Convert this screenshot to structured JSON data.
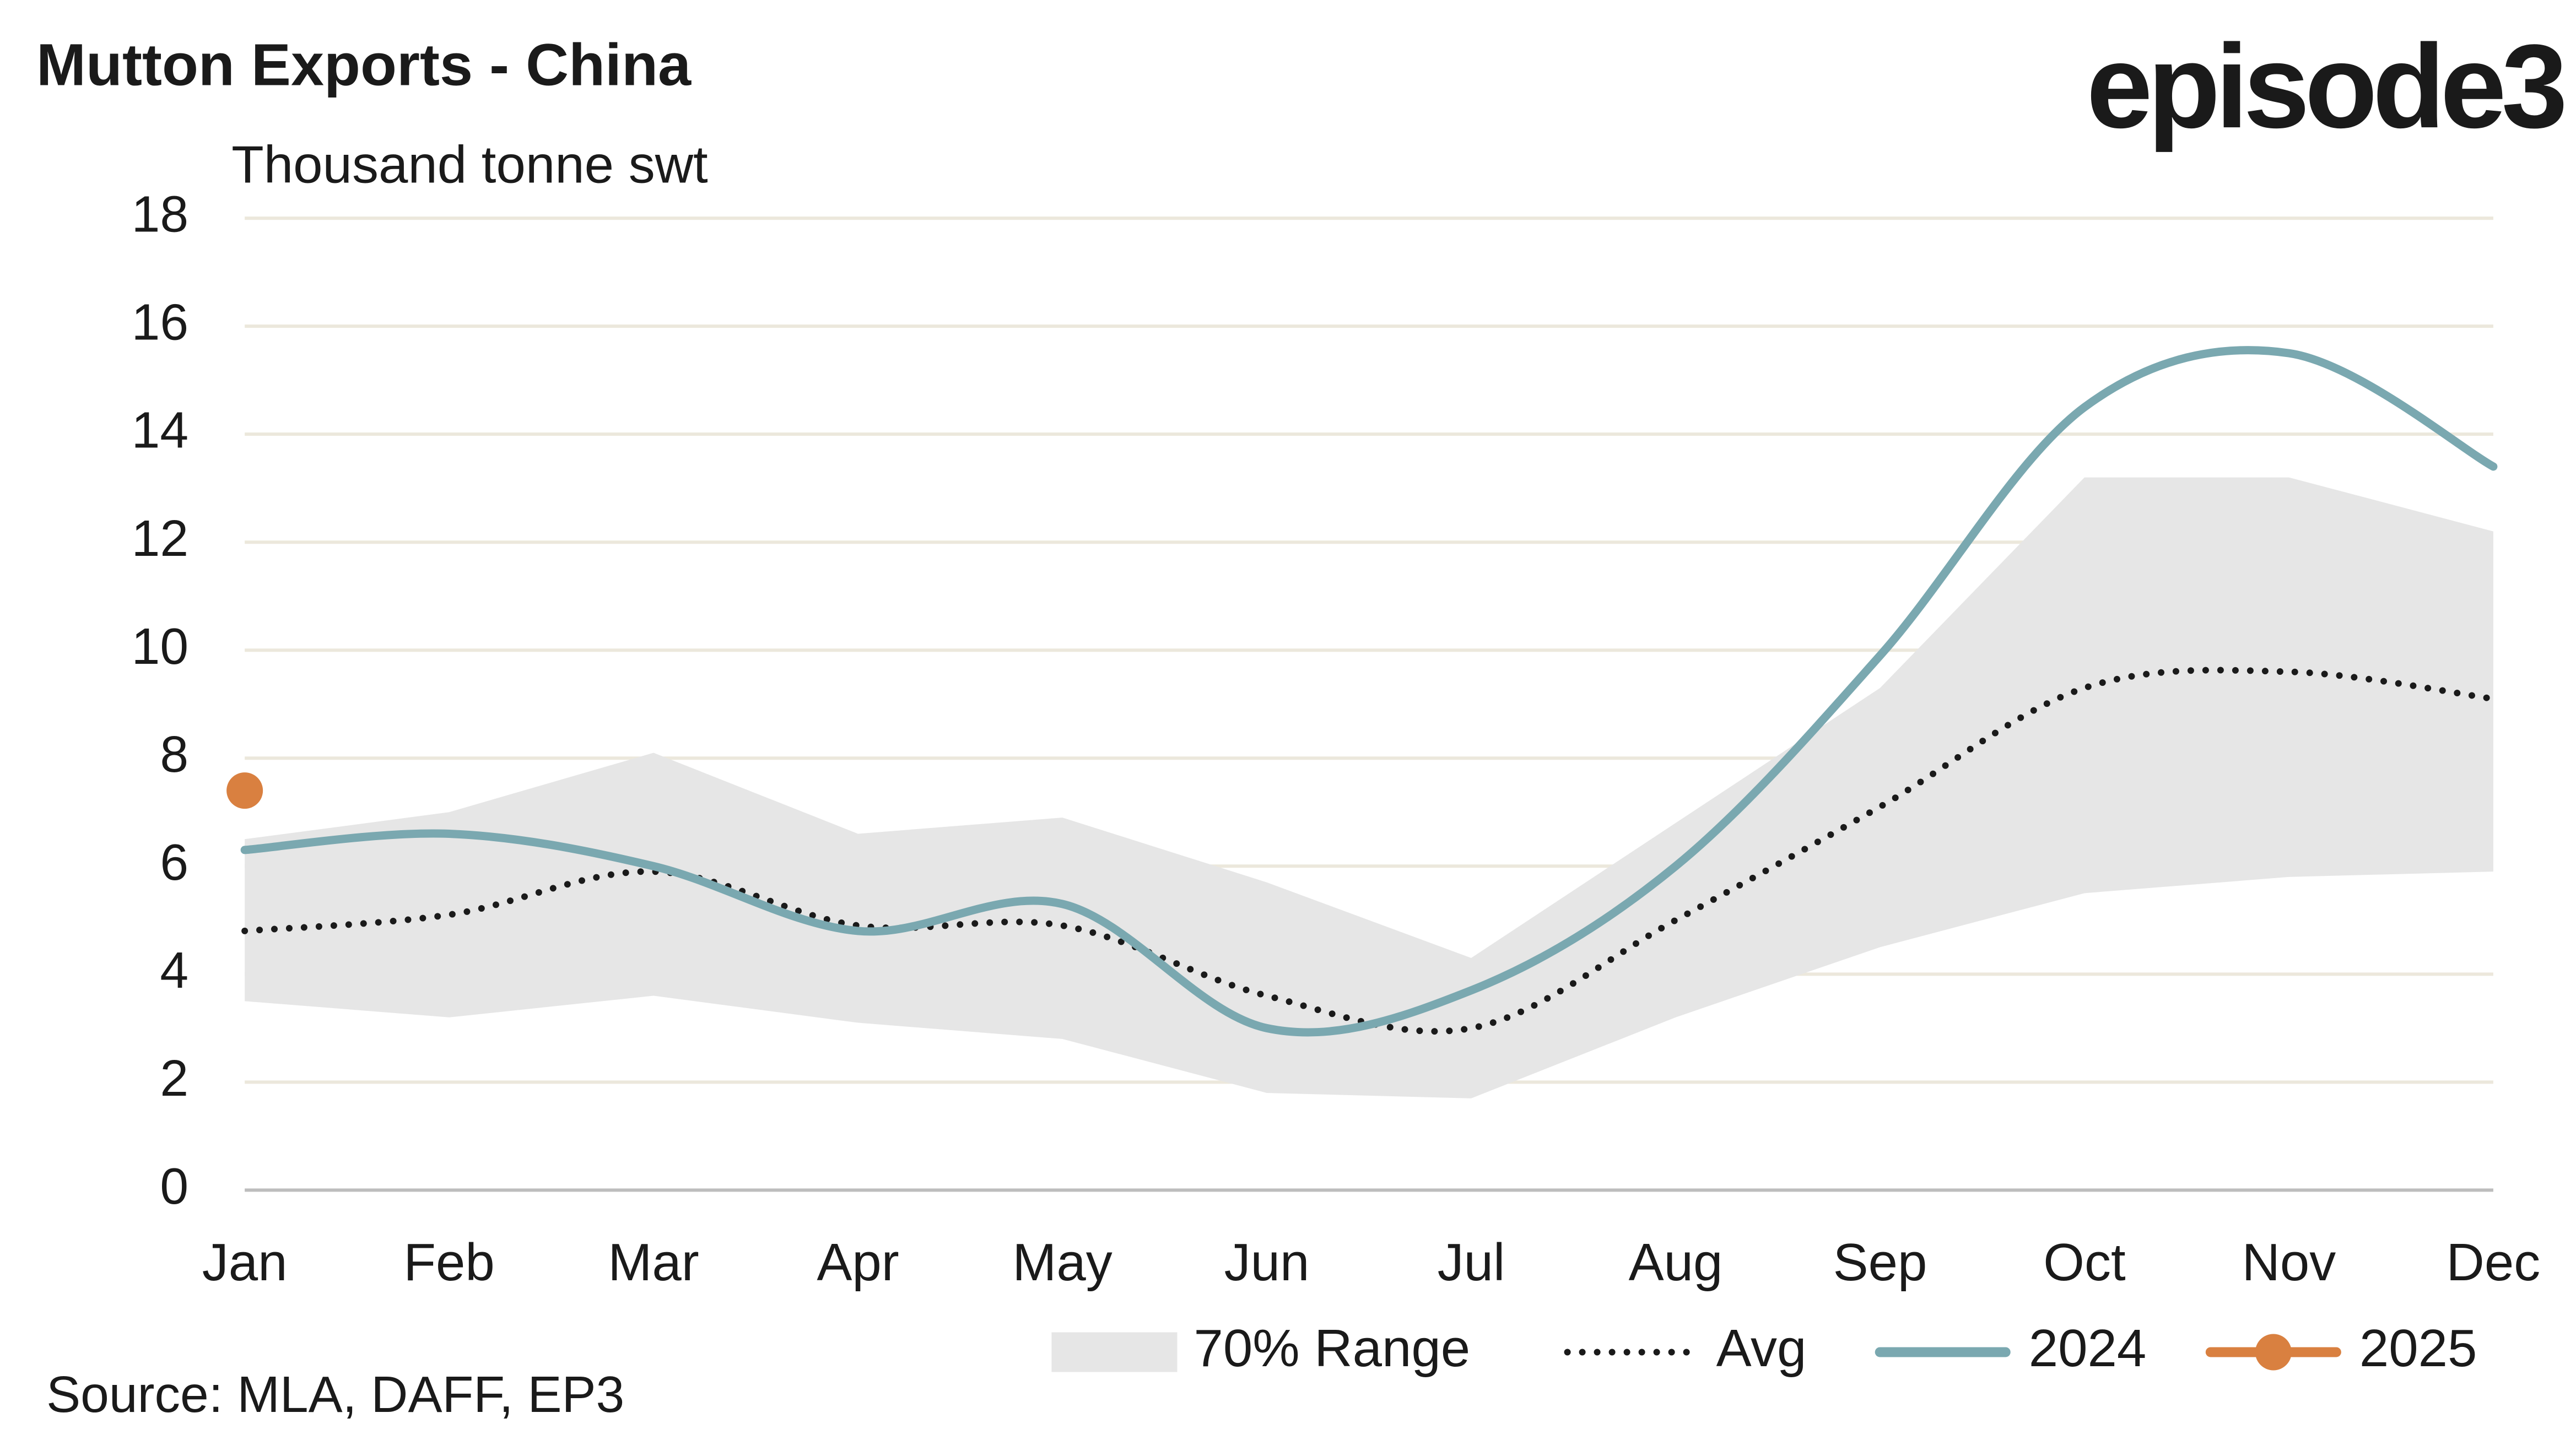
{
  "chart_data": {
    "type": "line",
    "title": "Mutton Exports - China",
    "logo": "episode3",
    "y_label": "Thousand tonne swt",
    "source": "Source: MLA, DAFF, EP3",
    "categories": [
      "Jan",
      "Feb",
      "Mar",
      "Apr",
      "May",
      "Jun",
      "Jul",
      "Aug",
      "Sep",
      "Oct",
      "Nov",
      "Dec"
    ],
    "ylim": [
      0,
      18
    ],
    "yticks": [
      0,
      2,
      4,
      6,
      8,
      10,
      12,
      14,
      16,
      18
    ],
    "grid": true,
    "legend": "bottom",
    "series": [
      {
        "name": "70% Range",
        "style": "band",
        "color": "#e6e6e6",
        "high": [
          6.5,
          7.0,
          8.1,
          6.6,
          6.9,
          5.7,
          4.3,
          6.8,
          9.3,
          13.2,
          13.2,
          12.2
        ],
        "low": [
          3.5,
          3.2,
          3.6,
          3.1,
          2.8,
          1.8,
          1.7,
          3.2,
          4.5,
          5.5,
          5.8,
          5.9
        ]
      },
      {
        "name": "Avg",
        "style": "dotted",
        "color": "#1a1a1a",
        "values": [
          4.8,
          5.1,
          5.9,
          4.9,
          4.9,
          3.6,
          3.0,
          5.0,
          7.1,
          9.3,
          9.6,
          9.1
        ]
      },
      {
        "name": "2024",
        "style": "line",
        "color": "#7aa8b0",
        "values": [
          6.3,
          6.6,
          6.0,
          4.8,
          5.3,
          3.0,
          3.7,
          6.0,
          9.9,
          14.5,
          15.5,
          13.4
        ]
      },
      {
        "name": "2025",
        "style": "marker",
        "color": "#d98040",
        "values": [
          7.4,
          null,
          null,
          null,
          null,
          null,
          null,
          null,
          null,
          null,
          null,
          null
        ]
      }
    ]
  }
}
